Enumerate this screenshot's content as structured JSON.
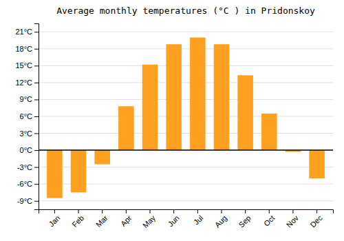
{
  "chart_data": {
    "type": "bar",
    "title": "Average monthly temperatures (°C ) in Pridonskoy",
    "categories": [
      "Jan",
      "Feb",
      "Mar",
      "Apr",
      "May",
      "Jun",
      "Jul",
      "Aug",
      "Sep",
      "Oct",
      "Nov",
      "Dec"
    ],
    "values": [
      -8.5,
      -7.5,
      -2.5,
      7.8,
      15.2,
      18.8,
      20.0,
      18.8,
      13.3,
      6.5,
      -0.3,
      -5.0
    ],
    "color": "#FFA020",
    "ylim": [
      -10.5,
      22.5
    ],
    "yticks": [
      {
        "value": -9,
        "label": "-9°C"
      },
      {
        "value": -6,
        "label": "-6°C"
      },
      {
        "value": -3,
        "label": "-3°C"
      },
      {
        "value": 0,
        "label": "0°C"
      },
      {
        "value": 3,
        "label": "3°C"
      },
      {
        "value": 6,
        "label": "6°C"
      },
      {
        "value": 9,
        "label": "9°C"
      },
      {
        "value": 12,
        "label": "12°C"
      },
      {
        "value": 15,
        "label": "15°C"
      },
      {
        "value": 18,
        "label": "18°C"
      },
      {
        "value": 21,
        "label": "21°C"
      }
    ],
    "grid": true
  }
}
